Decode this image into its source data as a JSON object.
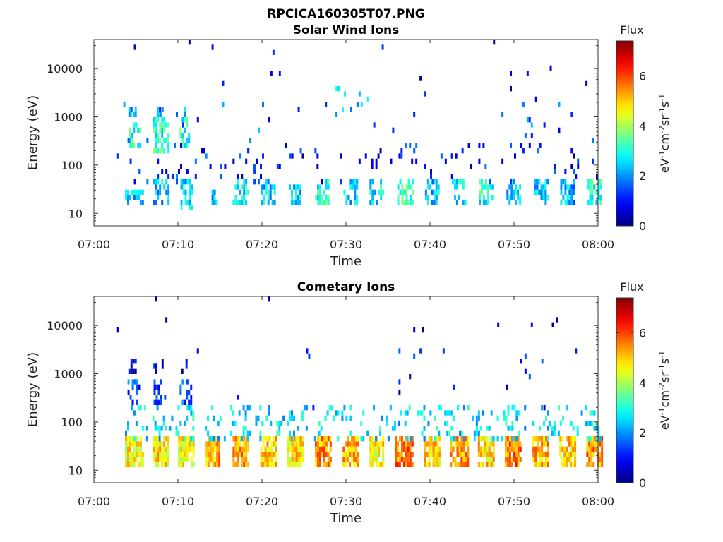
{
  "figure_title": "RPCICA160305T07.PNG",
  "chart_data": [
    {
      "type": "heatmap",
      "title": "Solar Wind Ions",
      "xlabel": "Time",
      "ylabel": "Energy (eV)",
      "x_range": [
        "07:00",
        "08:00"
      ],
      "x_ticks": [
        "07:00",
        "07:10",
        "07:20",
        "07:30",
        "07:40",
        "07:50",
        "08:00"
      ],
      "y_scale": "log",
      "y_range": [
        5.5,
        40000
      ],
      "y_ticks": [
        10,
        100,
        1000,
        10000
      ],
      "colorbar": {
        "title": "Flux",
        "label": "eV-1cm-2sr-1s-1",
        "range": [
          0,
          7.4
        ],
        "ticks": [
          0,
          2,
          4,
          6
        ],
        "colormap": "jet"
      },
      "bursts_minutes": [
        4.6,
        7.9,
        11.0,
        14.0,
        17.3,
        20.7,
        23.9,
        27.2,
        30.4,
        33.6,
        36.9,
        40.2,
        43.4,
        46.6,
        49.9,
        53.2,
        56.3,
        59.5
      ],
      "clusters": [
        {
          "t0": 3.7,
          "t1": 5.8,
          "e0": 16,
          "e1": 28,
          "v": 2.4,
          "d": 0.55
        },
        {
          "t0": 7.0,
          "t1": 8.8,
          "e0": 16,
          "e1": 45,
          "v": 2.3,
          "d": 0.55
        },
        {
          "t0": 10.3,
          "t1": 11.8,
          "e0": 14,
          "e1": 45,
          "v": 2.4,
          "d": 0.55
        },
        {
          "t0": 13.5,
          "t1": 14.7,
          "e0": 16,
          "e1": 35,
          "v": 2.3,
          "d": 0.5
        },
        {
          "t0": 16.5,
          "t1": 18.3,
          "e0": 16,
          "e1": 45,
          "v": 2.8,
          "d": 0.6
        },
        {
          "t0": 19.9,
          "t1": 21.5,
          "e0": 16,
          "e1": 40,
          "v": 2.4,
          "d": 0.55
        },
        {
          "t0": 23.2,
          "t1": 24.7,
          "e0": 16,
          "e1": 35,
          "v": 2.6,
          "d": 0.5
        },
        {
          "t0": 26.3,
          "t1": 28.0,
          "e0": 16,
          "e1": 45,
          "v": 3.0,
          "d": 0.6
        },
        {
          "t0": 29.7,
          "t1": 31.3,
          "e0": 15,
          "e1": 40,
          "v": 2.4,
          "d": 0.55
        },
        {
          "t0": 32.8,
          "t1": 34.4,
          "e0": 16,
          "e1": 45,
          "v": 2.6,
          "d": 0.55
        },
        {
          "t0": 36.1,
          "t1": 37.9,
          "e0": 16,
          "e1": 40,
          "v": 3.1,
          "d": 0.6
        },
        {
          "t0": 39.4,
          "t1": 41.0,
          "e0": 16,
          "e1": 40,
          "v": 2.4,
          "d": 0.55
        },
        {
          "t0": 42.6,
          "t1": 44.2,
          "e0": 16,
          "e1": 40,
          "v": 2.7,
          "d": 0.55
        },
        {
          "t0": 45.8,
          "t1": 47.5,
          "e0": 16,
          "e1": 40,
          "v": 3.0,
          "d": 0.6
        },
        {
          "t0": 49.1,
          "t1": 50.7,
          "e0": 16,
          "e1": 40,
          "v": 2.5,
          "d": 0.55
        },
        {
          "t0": 52.4,
          "t1": 54.0,
          "e0": 16,
          "e1": 40,
          "v": 2.4,
          "d": 0.55
        },
        {
          "t0": 55.5,
          "t1": 57.2,
          "e0": 16,
          "e1": 40,
          "v": 2.2,
          "d": 0.55
        },
        {
          "t0": 58.7,
          "t1": 60.3,
          "e0": 16,
          "e1": 40,
          "v": 3.0,
          "d": 0.6
        },
        {
          "t0": 3.9,
          "t1": 5.6,
          "e0": 250,
          "e1": 700,
          "v": 3.1,
          "d": 0.45
        },
        {
          "t0": 7.0,
          "t1": 8.8,
          "e0": 200,
          "e1": 800,
          "v": 3.1,
          "d": 0.45
        },
        {
          "t0": 10.2,
          "t1": 11.3,
          "e0": 280,
          "e1": 800,
          "v": 3.0,
          "d": 0.4
        },
        {
          "t0": 4.1,
          "t1": 5.0,
          "e0": 1100,
          "e1": 1600,
          "v": 2.2,
          "d": 0.5
        },
        {
          "t0": 7.3,
          "t1": 8.1,
          "e0": 1100,
          "e1": 1600,
          "v": 2.2,
          "d": 0.5
        },
        {
          "t0": 10.5,
          "t1": 11.0,
          "e0": 1100,
          "e1": 1600,
          "v": 2.4,
          "d": 0.5
        },
        {
          "t0": 4.0,
          "t1": 11.5,
          "e0": 50,
          "e1": 120,
          "v": 1.2,
          "d": 0.07
        },
        {
          "t0": 11.5,
          "t1": 60.0,
          "e0": 50,
          "e1": 250,
          "v": 1.0,
          "d": 0.06
        },
        {
          "t0": 28.5,
          "t1": 33.0,
          "e0": 1200,
          "e1": 3500,
          "v": 2.3,
          "d": 0.12
        },
        {
          "t0": 2.5,
          "t1": 60.0,
          "e0": 150,
          "e1": 2000,
          "v": 1.6,
          "d": 0.012
        },
        {
          "t0": 2.5,
          "t1": 60.0,
          "e0": 2000,
          "e1": 38000,
          "v": 0.8,
          "d": 0.006
        }
      ]
    },
    {
      "type": "heatmap",
      "title": "Cometary Ions",
      "xlabel": "Time",
      "ylabel": "Energy (eV)",
      "x_range": [
        "07:00",
        "08:00"
      ],
      "x_ticks": [
        "07:00",
        "07:10",
        "07:20",
        "07:30",
        "07:40",
        "07:50",
        "08:00"
      ],
      "y_scale": "log",
      "y_range": [
        5.5,
        40000
      ],
      "y_ticks": [
        10,
        100,
        1000,
        10000
      ],
      "colorbar": {
        "title": "Flux",
        "label": "eV-1cm-2sr-1s-1",
        "range": [
          0,
          7.4
        ],
        "ticks": [
          0,
          2,
          4,
          6
        ],
        "colormap": "jet"
      },
      "bursts_minutes": [
        4.6,
        7.9,
        11.0,
        14.0,
        17.3,
        20.7,
        23.9,
        27.2,
        30.4,
        33.6,
        36.9,
        40.2,
        43.4,
        46.6,
        49.9,
        53.2,
        56.3,
        59.5
      ],
      "clusters": [
        {
          "t0": 3.7,
          "t1": 5.8,
          "e0": 12,
          "e1": 45,
          "v": 4.6,
          "d": 0.85
        },
        {
          "t0": 7.0,
          "t1": 8.8,
          "e0": 12,
          "e1": 45,
          "v": 4.8,
          "d": 0.85
        },
        {
          "t0": 10.0,
          "t1": 11.9,
          "e0": 12,
          "e1": 45,
          "v": 4.7,
          "d": 0.85
        },
        {
          "t0": 13.3,
          "t1": 14.9,
          "e0": 12,
          "e1": 45,
          "v": 5.2,
          "d": 0.85
        },
        {
          "t0": 16.5,
          "t1": 18.3,
          "e0": 12,
          "e1": 45,
          "v": 5.3,
          "d": 0.85
        },
        {
          "t0": 19.8,
          "t1": 21.6,
          "e0": 12,
          "e1": 45,
          "v": 5.0,
          "d": 0.85
        },
        {
          "t0": 23.0,
          "t1": 24.8,
          "e0": 12,
          "e1": 45,
          "v": 4.8,
          "d": 0.85
        },
        {
          "t0": 26.3,
          "t1": 28.2,
          "e0": 12,
          "e1": 45,
          "v": 5.4,
          "d": 0.85
        },
        {
          "t0": 29.6,
          "t1": 31.4,
          "e0": 12,
          "e1": 45,
          "v": 5.1,
          "d": 0.85
        },
        {
          "t0": 32.8,
          "t1": 34.5,
          "e0": 12,
          "e1": 45,
          "v": 4.7,
          "d": 0.85
        },
        {
          "t0": 35.8,
          "t1": 38.0,
          "e0": 12,
          "e1": 45,
          "v": 5.6,
          "d": 0.85
        },
        {
          "t0": 39.3,
          "t1": 41.1,
          "e0": 12,
          "e1": 45,
          "v": 5.0,
          "d": 0.85
        },
        {
          "t0": 42.4,
          "t1": 44.5,
          "e0": 12,
          "e1": 45,
          "v": 5.4,
          "d": 0.85
        },
        {
          "t0": 45.7,
          "t1": 47.6,
          "e0": 12,
          "e1": 45,
          "v": 4.9,
          "d": 0.85
        },
        {
          "t0": 48.9,
          "t1": 50.9,
          "e0": 12,
          "e1": 45,
          "v": 5.6,
          "d": 0.85
        },
        {
          "t0": 52.2,
          "t1": 54.1,
          "e0": 12,
          "e1": 45,
          "v": 5.2,
          "d": 0.85
        },
        {
          "t0": 55.4,
          "t1": 57.3,
          "e0": 12,
          "e1": 45,
          "v": 5.0,
          "d": 0.85
        },
        {
          "t0": 58.6,
          "t1": 60.4,
          "e0": 12,
          "e1": 45,
          "v": 5.4,
          "d": 0.85
        },
        {
          "t0": 3.7,
          "t1": 60.3,
          "e0": 45,
          "e1": 220,
          "v": 2.6,
          "d": 0.16
        },
        {
          "t0": 4.0,
          "t1": 5.5,
          "e0": 280,
          "e1": 700,
          "v": 1.4,
          "d": 0.4
        },
        {
          "t0": 7.1,
          "t1": 8.6,
          "e0": 280,
          "e1": 700,
          "v": 1.4,
          "d": 0.4
        },
        {
          "t0": 10.2,
          "t1": 11.5,
          "e0": 280,
          "e1": 700,
          "v": 1.4,
          "d": 0.4
        },
        {
          "t0": 4.1,
          "t1": 5.0,
          "e0": 1100,
          "e1": 1700,
          "v": 0.6,
          "d": 0.5
        },
        {
          "t0": 7.3,
          "t1": 8.1,
          "e0": 1100,
          "e1": 1700,
          "v": 0.6,
          "d": 0.5
        },
        {
          "t0": 10.4,
          "t1": 11.1,
          "e0": 1100,
          "e1": 1700,
          "v": 0.6,
          "d": 0.5
        },
        {
          "t0": 2.5,
          "t1": 60.0,
          "e0": 220,
          "e1": 3000,
          "v": 0.9,
          "d": 0.01
        },
        {
          "t0": 2.5,
          "t1": 60.0,
          "e0": 3000,
          "e1": 38000,
          "v": 0.6,
          "d": 0.004
        }
      ]
    }
  ]
}
